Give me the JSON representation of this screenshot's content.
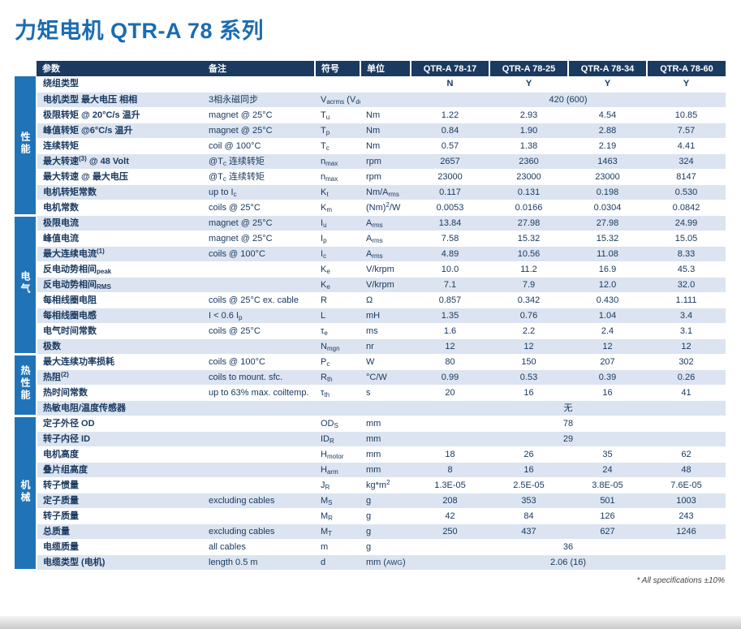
{
  "page": {
    "title": "力矩电机 QTR-A 78 系列",
    "footnote": "* All specifications ±10%"
  },
  "colors": {
    "title_accent": "#1a6cb0",
    "header_bg": "#1b3a60",
    "section_bg": "#2173b8",
    "row_stripe": "#dbe4f0",
    "text": "#1b3a60"
  },
  "table": {
    "headers": [
      "参数",
      "备注",
      "符号",
      "单位",
      "QTR-A 78-17",
      "QTR-A 78-25",
      "QTR-A 78-34",
      "QTR-A 78-60"
    ],
    "sections": [
      {
        "label": "性能",
        "rows": [
          {
            "param": "绕组类型",
            "note": "",
            "symbol": "",
            "unit": "",
            "values": [
              "N",
              "Y",
              "Y",
              "Y"
            ],
            "strong": true
          },
          {
            "param": "电机类型  最大电压  相相",
            "note": "3相永磁同步",
            "symbol": [
              [
                "V",
                ""
              ],
              [
                "acrms",
                "sub"
              ],
              [
                " (V",
                ""
              ],
              [
                "dc",
                "sub"
              ],
              [
                ")",
                ""
              ]
            ],
            "unit": "",
            "span": "420 (600)"
          },
          {
            "param": "极限转矩 @ 20°C/s 温升",
            "note": "magnet @ 25°C",
            "symbol": [
              [
                "T",
                ""
              ],
              [
                "u",
                "sub"
              ]
            ],
            "unit": "Nm",
            "values": [
              "1.22",
              "2.93",
              "4.54",
              "10.85"
            ]
          },
          {
            "param": "峰值转矩 @6°C/s 温升",
            "note": "magnet @ 25°C",
            "symbol": [
              [
                "T",
                ""
              ],
              [
                "p",
                "sub"
              ]
            ],
            "unit": "Nm",
            "values": [
              "0.84",
              "1.90",
              "2.88",
              "7.57"
            ]
          },
          {
            "param": "连续转矩",
            "note": "coil @ 100°C",
            "symbol": [
              [
                "T",
                ""
              ],
              [
                "c",
                "sub"
              ]
            ],
            "unit": "Nm",
            "values": [
              "0.57",
              "1.38",
              "2.19",
              "4.41"
            ]
          },
          {
            "param": [
              [
                "最大转速",
                ""
              ],
              [
                "(3)",
                "sup"
              ],
              [
                " @ 48 Volt",
                ""
              ]
            ],
            "note": [
              [
                "@T",
                ""
              ],
              [
                "c",
                "sub"
              ],
              [
                " 连续转矩",
                ""
              ]
            ],
            "symbol": [
              [
                "n",
                ""
              ],
              [
                "max",
                "sub"
              ]
            ],
            "unit": "rpm",
            "values": [
              "2657",
              "2360",
              "1463",
              "324"
            ]
          },
          {
            "param": "最大转速 @ 最大电压",
            "note": [
              [
                "@T",
                ""
              ],
              [
                "c",
                "sub"
              ],
              [
                " 连续转矩",
                ""
              ]
            ],
            "symbol": [
              [
                "n",
                ""
              ],
              [
                "max",
                "sub"
              ]
            ],
            "unit": "rpm",
            "values": [
              "23000",
              "23000",
              "23000",
              "8147"
            ]
          },
          {
            "param": "电机转矩常数",
            "note": [
              [
                "up to I",
                ""
              ],
              [
                "c",
                "sub"
              ]
            ],
            "symbol": [
              [
                "K",
                ""
              ],
              [
                "t",
                "sub"
              ]
            ],
            "unit": [
              [
                "Nm/A",
                ""
              ],
              [
                "rms",
                "sub"
              ]
            ],
            "values": [
              "0.117",
              "0.131",
              "0.198",
              "0.530"
            ]
          },
          {
            "param": "电机常数",
            "note": "coils @ 25°C",
            "symbol": [
              [
                "K",
                ""
              ],
              [
                "m",
                "sub"
              ]
            ],
            "unit": [
              [
                "(Nm)",
                ""
              ],
              [
                "2",
                "sup"
              ],
              [
                "/W",
                ""
              ]
            ],
            "values": [
              "0.0053",
              "0.0166",
              "0.0304",
              "0.0842"
            ]
          }
        ]
      },
      {
        "label": "电气",
        "rows": [
          {
            "param": "极限电流",
            "note": "magnet @ 25°C",
            "symbol": [
              [
                "I",
                ""
              ],
              [
                "u",
                "sub"
              ]
            ],
            "unit": [
              [
                "A",
                ""
              ],
              [
                "rms",
                "sub"
              ]
            ],
            "values": [
              "13.84",
              "27.98",
              "27.98",
              "24.99"
            ]
          },
          {
            "param": "峰值电流",
            "note": "magnet @ 25°C",
            "symbol": [
              [
                "I",
                ""
              ],
              [
                "p",
                "sub"
              ]
            ],
            "unit": [
              [
                "A",
                ""
              ],
              [
                "rms",
                "sub"
              ]
            ],
            "values": [
              "7.58",
              "15.32",
              "15.32",
              "15.05"
            ]
          },
          {
            "param": [
              [
                "最大连续电流",
                ""
              ],
              [
                "(1)",
                "sup"
              ]
            ],
            "note": "coils @ 100°C",
            "symbol": [
              [
                "I",
                ""
              ],
              [
                "c",
                "sub"
              ]
            ],
            "unit": [
              [
                "A",
                ""
              ],
              [
                "rms",
                "sub"
              ]
            ],
            "values": [
              "4.89",
              "10.56",
              "11.08",
              "8.33"
            ]
          },
          {
            "param": [
              [
                "反电动势相间",
                ""
              ],
              [
                "peak",
                "sub"
              ]
            ],
            "note": "",
            "symbol": [
              [
                "K",
                ""
              ],
              [
                "e",
                "sub"
              ]
            ],
            "unit": "V/krpm",
            "values": [
              "10.0",
              "11.2",
              "16.9",
              "45.3"
            ]
          },
          {
            "param": [
              [
                "反电动势相间",
                ""
              ],
              [
                "RMS",
                "sub"
              ]
            ],
            "note": "",
            "symbol": [
              [
                "K",
                ""
              ],
              [
                "e",
                "sub"
              ]
            ],
            "unit": "V/krpm",
            "values": [
              "7.1",
              "7.9",
              "12.0",
              "32.0"
            ]
          },
          {
            "param": "每相线圈电阻",
            "note": "coils @ 25°C ex. cable",
            "symbol": "R",
            "unit": "Ω",
            "values": [
              "0.857",
              "0.342",
              "0.430",
              "1.111"
            ]
          },
          {
            "param": "每相线圈电感",
            "note": [
              [
                "I < 0.6 I",
                ""
              ],
              [
                "p",
                "sub"
              ]
            ],
            "symbol": "L",
            "unit": "mH",
            "values": [
              "1.35",
              "0.76",
              "1.04",
              "3.4"
            ]
          },
          {
            "param": "电气时间常数",
            "note": "coils @ 25°C",
            "symbol": [
              [
                "τ",
                ""
              ],
              [
                "e",
                "sub"
              ]
            ],
            "unit": "ms",
            "values": [
              "1.6",
              "2.2",
              "2.4",
              "3.1"
            ]
          },
          {
            "param": "极数",
            "note": "",
            "symbol": [
              [
                "N",
                ""
              ],
              [
                "mgn",
                "sub"
              ]
            ],
            "unit": "nr",
            "values": [
              "12",
              "12",
              "12",
              "12"
            ]
          }
        ]
      },
      {
        "label": "热性能",
        "rows": [
          {
            "param": "最大连续功率损耗",
            "note": "coils @ 100°C",
            "symbol": [
              [
                "P",
                ""
              ],
              [
                "c",
                "sub"
              ]
            ],
            "unit": "W",
            "values": [
              "80",
              "150",
              "207",
              "302"
            ]
          },
          {
            "param": [
              [
                "热阻",
                ""
              ],
              [
                "(2)",
                "sup"
              ]
            ],
            "note": "coils to mount. sfc.",
            "symbol": [
              [
                "R",
                ""
              ],
              [
                "th",
                "sub"
              ]
            ],
            "unit": "°C/W",
            "values": [
              "0.99",
              "0.53",
              "0.39",
              "0.26"
            ]
          },
          {
            "param": "热时间常数",
            "note": "up to 63% max. coiltemp.",
            "symbol": [
              [
                "τ",
                ""
              ],
              [
                "th",
                "sub"
              ]
            ],
            "unit": "s",
            "values": [
              "20",
              "16",
              "16",
              "41"
            ]
          },
          {
            "param": "热敏电阻/温度传感器",
            "note": "",
            "symbol": "",
            "unit": "",
            "span": "无"
          }
        ]
      },
      {
        "label": "机械",
        "rows": [
          {
            "param": "定子外径  OD",
            "note": "",
            "symbol": [
              [
                "OD",
                ""
              ],
              [
                "S",
                "sub"
              ]
            ],
            "unit": "mm",
            "span": "78"
          },
          {
            "param": "转子内径  ID",
            "note": "",
            "symbol": [
              [
                "ID",
                ""
              ],
              [
                "R",
                "sub"
              ]
            ],
            "unit": "mm",
            "span": "29"
          },
          {
            "param": "电机高度",
            "note": "",
            "symbol": [
              [
                "H",
                ""
              ],
              [
                "motor",
                "sub"
              ]
            ],
            "unit": "mm",
            "values": [
              "18",
              "26",
              "35",
              "62"
            ]
          },
          {
            "param": "叠片组高度",
            "note": "",
            "symbol": [
              [
                "H",
                ""
              ],
              [
                "arm",
                "sub"
              ]
            ],
            "unit": "mm",
            "values": [
              "8",
              "16",
              "24",
              "48"
            ]
          },
          {
            "param": "转子惯量",
            "note": "",
            "symbol": [
              [
                "J",
                ""
              ],
              [
                "R",
                "sub"
              ]
            ],
            "unit": [
              [
                "kg*m",
                ""
              ],
              [
                "2",
                "sup"
              ]
            ],
            "values": [
              "1.3E-05",
              "2.5E-05",
              "3.8E-05",
              "7.6E-05"
            ]
          },
          {
            "param": "定子质量",
            "note": "excluding cables",
            "symbol": [
              [
                "M",
                ""
              ],
              [
                "S",
                "sub"
              ]
            ],
            "unit": "g",
            "values": [
              "208",
              "353",
              "501",
              "1003"
            ]
          },
          {
            "param": "转子质量",
            "note": "",
            "symbol": [
              [
                "M",
                ""
              ],
              [
                "R",
                "sub"
              ]
            ],
            "unit": "g",
            "values": [
              "42",
              "84",
              "126",
              "243"
            ]
          },
          {
            "param": "总质量",
            "note": "excluding cables",
            "symbol": [
              [
                "M",
                ""
              ],
              [
                "T",
                "sub"
              ]
            ],
            "unit": "g",
            "values": [
              "250",
              "437",
              "627",
              "1246"
            ]
          },
          {
            "param": "电缆质量",
            "note": "all cables",
            "symbol": "m",
            "unit": "g",
            "span": "36"
          },
          {
            "param": "电缆类型 (电机)",
            "note": "length 0.5 m",
            "symbol": "d",
            "unit": [
              [
                "mm (",
                ""
              ],
              [
                "AWG",
                "small"
              ],
              [
                ")",
                ""
              ]
            ],
            "span": "2.06 (16)"
          }
        ]
      }
    ]
  }
}
